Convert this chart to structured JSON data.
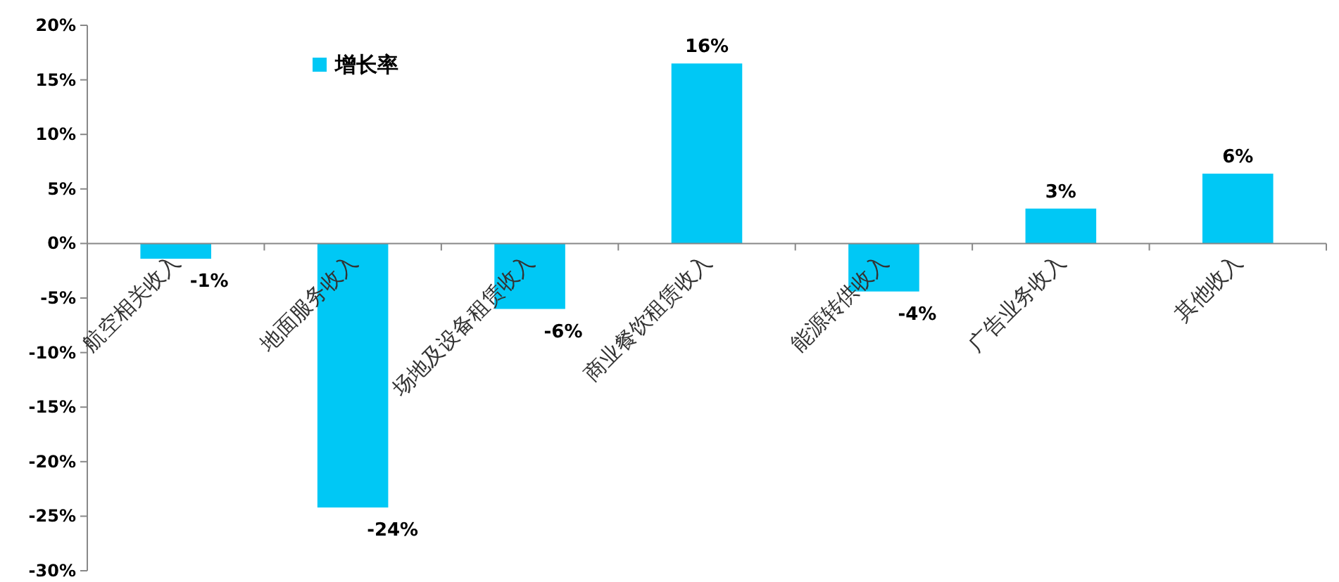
{
  "chart_data": {
    "type": "bar",
    "categories": [
      "航空相关收入",
      "地面服务收入",
      "场地及设备租赁收入",
      "商业餐饮租赁收入",
      "能源转供收入",
      "广告业务收入",
      "其他收入"
    ],
    "series": [
      {
        "name": "增长率",
        "color": "#00c8f5",
        "values": [
          -1.4,
          -24.2,
          -6.0,
          16.5,
          -4.4,
          3.2,
          6.4
        ],
        "value_labels": [
          "-1%",
          "-24%",
          "-6%",
          "16%",
          "-4%",
          "3%",
          "6%"
        ]
      }
    ],
    "ylim": [
      -30,
      20
    ],
    "yticks": [
      {
        "value": -30,
        "label": "-30%"
      },
      {
        "value": -25,
        "label": "-25%"
      },
      {
        "value": -20,
        "label": "-20%"
      },
      {
        "value": -15,
        "label": "-15%"
      },
      {
        "value": -10,
        "label": "-10%"
      },
      {
        "value": -5,
        "label": "-5%"
      },
      {
        "value": 0,
        "label": "0%"
      },
      {
        "value": 5,
        "label": "5%"
      },
      {
        "value": 10,
        "label": "10%"
      },
      {
        "value": 15,
        "label": "15%"
      },
      {
        "value": 20,
        "label": "20%"
      }
    ],
    "legend": "top left"
  }
}
